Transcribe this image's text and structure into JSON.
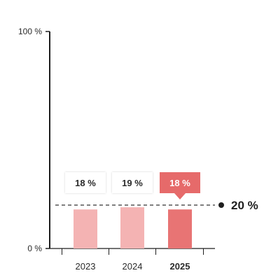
{
  "chart_data": {
    "type": "bar",
    "categories": [
      "2023",
      "2024",
      "2025"
    ],
    "values": [
      18,
      19,
      18
    ],
    "value_labels": [
      "18 %",
      "19 %",
      "18 %"
    ],
    "highlight_index": 2,
    "ylim": [
      0,
      100
    ],
    "y_ticks": [
      {
        "value": 0,
        "label": "0 %"
      },
      {
        "value": 100,
        "label": "100 %"
      }
    ],
    "target": {
      "value": 20,
      "label": "20 %"
    },
    "title": "",
    "xlabel": "",
    "ylabel": "",
    "grid": false,
    "legend": "none"
  },
  "colors": {
    "bar": "#f4b3b3",
    "bar_highlight": "#e87474",
    "callout_highlight": "#e66a6a",
    "axis": "#1f1f1f",
    "text": "#2b2b2b",
    "callout_text_highlight": "#ffffff"
  }
}
